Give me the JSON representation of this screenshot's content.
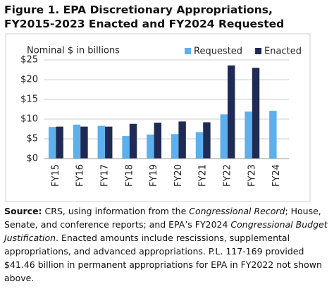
{
  "chart_data": {
    "type": "bar",
    "title": "Figure 1. EPA Discretionary Appropriations, FY2015-2023 Enacted and FY2024 Requested",
    "y_label": "Nominal $ in billions",
    "categories": [
      "FY15",
      "FY16",
      "FY17",
      "FY18",
      "FY19",
      "FY20",
      "FY21",
      "FY22",
      "FY23",
      "FY24"
    ],
    "series": [
      {
        "name": "Requested",
        "color": "#5cb0ee",
        "values": [
          8.0,
          8.6,
          8.3,
          5.7,
          6.1,
          6.2,
          6.7,
          11.2,
          11.9,
          12.1
        ]
      },
      {
        "name": "Enacted",
        "color": "#1f2b55",
        "values": [
          8.1,
          8.1,
          8.1,
          8.8,
          9.1,
          9.4,
          9.2,
          23.6,
          23.0,
          null
        ]
      }
    ],
    "ylim": [
      0,
      25
    ],
    "yticks": [
      {
        "value": 0,
        "label": "$0"
      },
      {
        "value": 5,
        "label": "$5"
      },
      {
        "value": 10,
        "label": "$10"
      },
      {
        "value": 15,
        "label": "$15"
      },
      {
        "value": 20,
        "label": "$20"
      },
      {
        "value": 25,
        "label": "$25"
      }
    ],
    "grid": true,
    "legend": "top-right"
  },
  "source": {
    "label": "Source:",
    "parts": [
      "CRS, using information from the ",
      "Congressional Record",
      "; House, Senate, and conference reports; and EPA’s FY2024 ",
      "Congressional Budget Justification",
      ". Enacted amounts include rescissions, supplemental appropriations, and advanced appropriations. P.L. 117-169 provided $41.46 billion in permanent appropriations for EPA in FY2022 not shown above."
    ]
  }
}
